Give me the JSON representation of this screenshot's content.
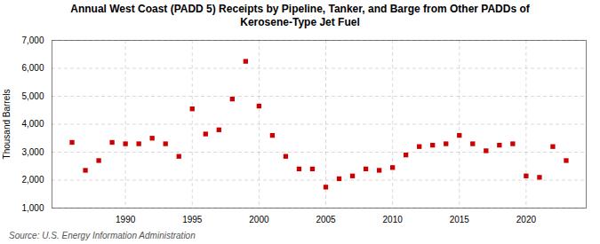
{
  "chart_data": {
    "type": "scatter",
    "title": "Annual West Coast (PADD 5) Receipts by Pipeline, Tanker, and Barge from Other PADDs of\nKerosene-Type Jet Fuel",
    "ylabel": "Thousand Barrels",
    "source": "Source: U.S. Energy Information Administration",
    "x": [
      1986,
      1987,
      1988,
      1989,
      1990,
      1991,
      1992,
      1993,
      1994,
      1995,
      1996,
      1997,
      1998,
      1999,
      2000,
      2001,
      2002,
      2003,
      2004,
      2005,
      2006,
      2007,
      2008,
      2009,
      2010,
      2011,
      2012,
      2013,
      2014,
      2015,
      2016,
      2017,
      2018,
      2019,
      2020,
      2021,
      2022,
      2023
    ],
    "values": [
      3350,
      2350,
      2700,
      3350,
      3300,
      3300,
      3500,
      3300,
      2850,
      4550,
      3650,
      3800,
      4900,
      6250,
      4650,
      3600,
      2850,
      2400,
      2400,
      1750,
      2050,
      2150,
      2400,
      2350,
      2450,
      2900,
      3200,
      3250,
      3300,
      3600,
      3300,
      3050,
      3250,
      3300,
      2150,
      2100,
      3200,
      2700
    ],
    "color": "#cc0000",
    "marker": "square",
    "xlim": [
      1984.5,
      2024.5
    ],
    "xticks": [
      1990,
      1995,
      2000,
      2005,
      2010,
      2015,
      2020
    ],
    "ylim": [
      1000,
      7000
    ],
    "yticks": [
      {
        "value": 1000,
        "label": "1,000"
      },
      {
        "value": 2000,
        "label": "2,000"
      },
      {
        "value": 3000,
        "label": "3,000"
      },
      {
        "value": 4000,
        "label": "4,000"
      },
      {
        "value": 5000,
        "label": "5,000"
      },
      {
        "value": 6000,
        "label": "6,000"
      },
      {
        "value": 7000,
        "label": "7,000"
      }
    ],
    "grid": true
  }
}
